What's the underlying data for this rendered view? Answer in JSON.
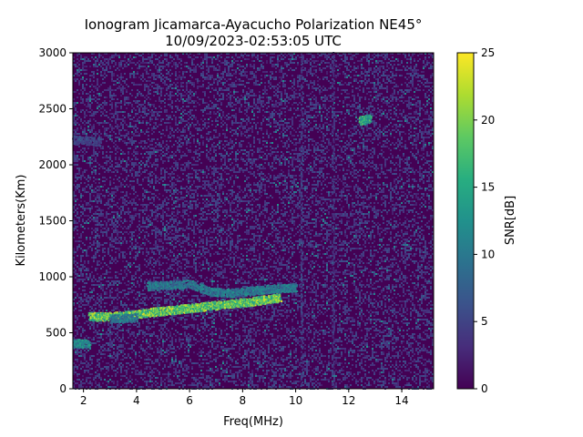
{
  "chart_data": {
    "type": "heatmap",
    "title_line1": "Ionogram Jicamarca-Ayacucho Polarization NE45°",
    "title_line2": "10/09/2023-02:53:05 UTC",
    "xlabel": "Freq(MHz)",
    "ylabel": "Kilometers(Km)",
    "xlim": [
      1.6,
      15.2
    ],
    "ylim": [
      0,
      3000
    ],
    "xticks": [
      2,
      4,
      6,
      8,
      10,
      12,
      14
    ],
    "yticks": [
      0,
      500,
      1000,
      1500,
      2000,
      2500,
      3000
    ],
    "grid": false,
    "colormap": "viridis",
    "colorbar": {
      "label": "SNR[dB]",
      "range": [
        0,
        25
      ],
      "ticks": [
        0,
        5,
        10,
        15,
        20,
        25
      ]
    },
    "background_level_db": 1,
    "features": [
      {
        "kind": "trace",
        "x": [
          2.2,
          2.8,
          3.4,
          4.0,
          4.6,
          5.2,
          5.8,
          6.4,
          7.0,
          7.6,
          8.2,
          8.8,
          9.4
        ],
        "y": [
          650,
          650,
          655,
          670,
          690,
          705,
          720,
          735,
          750,
          765,
          780,
          800,
          820
        ],
        "snr_db": 22
      },
      {
        "kind": "trace",
        "x": [
          4.4,
          5.2,
          6.0,
          6.8,
          7.6,
          8.4,
          9.2,
          10.0
        ],
        "y": [
          920,
          930,
          940,
          870,
          860,
          880,
          900,
          910
        ],
        "snr_db": 12
      },
      {
        "kind": "trace",
        "x": [
          1.6,
          2.2
        ],
        "y": [
          410,
          410
        ],
        "snr_db": 14
      },
      {
        "kind": "trace",
        "x": [
          3.0,
          4.0
        ],
        "y": [
          630,
          640
        ],
        "snr_db": 12
      },
      {
        "kind": "trace",
        "x": [
          1.6,
          2.6
        ],
        "y": [
          2230,
          2210
        ],
        "snr_db": 6
      },
      {
        "kind": "trace",
        "x": [
          12.4,
          12.8
        ],
        "y": [
          2400,
          2420
        ],
        "snr_db": 18
      },
      {
        "kind": "vertical",
        "x": 10.2,
        "y": [
          0,
          3000
        ],
        "snr_db": 5
      },
      {
        "kind": "vertical",
        "x": 11.4,
        "y": [
          0,
          3000
        ],
        "snr_db": 4
      },
      {
        "kind": "vertical",
        "x": 9.1,
        "y": [
          0,
          300
        ],
        "snr_db": 6
      }
    ]
  }
}
